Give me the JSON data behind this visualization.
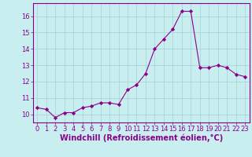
{
  "x": [
    0,
    1,
    2,
    3,
    4,
    5,
    6,
    7,
    8,
    9,
    10,
    11,
    12,
    13,
    14,
    15,
    16,
    17,
    18,
    19,
    20,
    21,
    22,
    23
  ],
  "y": [
    10.4,
    10.3,
    9.8,
    10.1,
    10.1,
    10.4,
    10.5,
    10.7,
    10.7,
    10.6,
    11.5,
    11.8,
    12.5,
    14.0,
    14.6,
    15.2,
    16.3,
    16.3,
    12.85,
    12.85,
    13.0,
    12.85,
    12.45,
    12.3
  ],
  "line_color": "#8B008B",
  "marker": "D",
  "marker_size": 2.2,
  "bg_color": "#c8eef0",
  "grid_color": "#a8d8da",
  "xlabel": "Windchill (Refroidissement éolien,°C)",
  "xlabel_color": "#8B008B",
  "xlabel_fontsize": 7,
  "ylim": [
    9.5,
    16.8
  ],
  "xlim": [
    -0.5,
    23.5
  ],
  "yticks": [
    10,
    11,
    12,
    13,
    14,
    15,
    16
  ],
  "xticks": [
    0,
    1,
    2,
    3,
    4,
    5,
    6,
    7,
    8,
    9,
    10,
    11,
    12,
    13,
    14,
    15,
    16,
    17,
    18,
    19,
    20,
    21,
    22,
    23
  ],
  "tick_fontsize": 6,
  "tick_color": "#8B008B",
  "spine_color": "#8B008B"
}
